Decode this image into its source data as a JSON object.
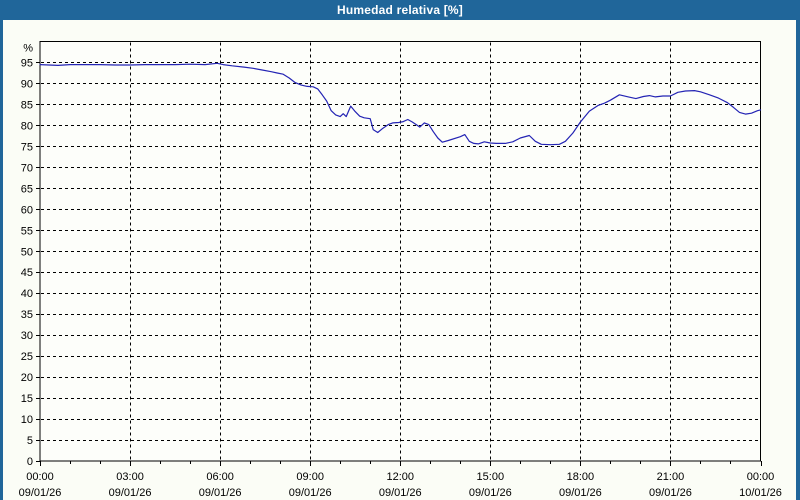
{
  "title": "Humedad relativa [%]",
  "colors": {
    "frame": "#20669a",
    "background": "#fbfdf6",
    "plot_background": "#fdfefa",
    "grid": "#000000",
    "axis": "#000000",
    "line": "#2424b4",
    "title_text": "#ffffff",
    "label_text": "#000000"
  },
  "chart_data": {
    "type": "line",
    "title": "Humedad relativa [%]",
    "ylabel": "%",
    "ylim": [
      0,
      100
    ],
    "yticks": [
      0,
      5,
      10,
      15,
      20,
      25,
      30,
      35,
      40,
      45,
      50,
      55,
      60,
      65,
      70,
      75,
      80,
      85,
      90,
      95
    ],
    "xlim_hours": [
      0,
      24
    ],
    "xticks": [
      {
        "hour": 0,
        "time": "00:00",
        "date": "09/01/26"
      },
      {
        "hour": 3,
        "time": "03:00",
        "date": "09/01/26"
      },
      {
        "hour": 6,
        "time": "06:00",
        "date": "09/01/26"
      },
      {
        "hour": 9,
        "time": "09:00",
        "date": "09/01/26"
      },
      {
        "hour": 12,
        "time": "12:00",
        "date": "09/01/26"
      },
      {
        "hour": 15,
        "time": "15:00",
        "date": "09/01/26"
      },
      {
        "hour": 18,
        "time": "18:00",
        "date": "09/01/26"
      },
      {
        "hour": 21,
        "time": "21:00",
        "date": "09/01/26"
      },
      {
        "hour": 24,
        "time": "00:00",
        "date": "10/01/26"
      }
    ],
    "minor_xtick_hours": 1,
    "grid": true,
    "legend": "none",
    "series": [
      {
        "name": "Humedad relativa",
        "color": "#2424b4",
        "points": [
          [
            0,
            94.5
          ],
          [
            0.3,
            94.4
          ],
          [
            0.6,
            94.3
          ],
          [
            1,
            94.5
          ],
          [
            1.5,
            94.5
          ],
          [
            2,
            94.5
          ],
          [
            2.5,
            94.4
          ],
          [
            3,
            94.4
          ],
          [
            3.5,
            94.5
          ],
          [
            4,
            94.5
          ],
          [
            4.5,
            94.5
          ],
          [
            5,
            94.6
          ],
          [
            5.5,
            94.5
          ],
          [
            5.9,
            94.8
          ],
          [
            6.1,
            94.5
          ],
          [
            6.4,
            94.2
          ],
          [
            6.8,
            93.9
          ],
          [
            7.1,
            93.6
          ],
          [
            7.4,
            93.2
          ],
          [
            7.7,
            92.8
          ],
          [
            7.9,
            92.5
          ],
          [
            8.1,
            92.2
          ],
          [
            8.3,
            91.3
          ],
          [
            8.5,
            90.2
          ],
          [
            8.7,
            89.6
          ],
          [
            8.9,
            89.3
          ],
          [
            9.1,
            89.2
          ],
          [
            9.25,
            88.7
          ],
          [
            9.4,
            87.3
          ],
          [
            9.55,
            85.8
          ],
          [
            9.7,
            83.5
          ],
          [
            9.85,
            82.5
          ],
          [
            10,
            82.1
          ],
          [
            10.1,
            82.8
          ],
          [
            10.2,
            82.1
          ],
          [
            10.35,
            84.6
          ],
          [
            10.5,
            83.3
          ],
          [
            10.65,
            82.2
          ],
          [
            10.8,
            81.8
          ],
          [
            11,
            81.6
          ],
          [
            11.1,
            79
          ],
          [
            11.25,
            78.3
          ],
          [
            11.4,
            79.2
          ],
          [
            11.6,
            80.2
          ],
          [
            11.75,
            80.6
          ],
          [
            11.95,
            80.7
          ],
          [
            12.1,
            80.9
          ],
          [
            12.25,
            81.4
          ],
          [
            12.4,
            80.8
          ],
          [
            12.55,
            80.1
          ],
          [
            12.65,
            79.6
          ],
          [
            12.8,
            80.6
          ],
          [
            12.95,
            80.2
          ],
          [
            13.1,
            78.5
          ],
          [
            13.25,
            77
          ],
          [
            13.4,
            76
          ],
          [
            13.6,
            76.4
          ],
          [
            14,
            77.3
          ],
          [
            14.15,
            77.8
          ],
          [
            14.3,
            76.2
          ],
          [
            14.45,
            75.7
          ],
          [
            14.6,
            75.6
          ],
          [
            14.8,
            76.1
          ],
          [
            15,
            75.8
          ],
          [
            15.2,
            75.7
          ],
          [
            15.5,
            75.7
          ],
          [
            15.75,
            76.1
          ],
          [
            16,
            77
          ],
          [
            16.3,
            77.6
          ],
          [
            16.5,
            76.2
          ],
          [
            16.7,
            75.5
          ],
          [
            17,
            75.4
          ],
          [
            17.3,
            75.5
          ],
          [
            17.5,
            76.2
          ],
          [
            17.75,
            78.2
          ],
          [
            18,
            80.8
          ],
          [
            18.3,
            83.4
          ],
          [
            18.6,
            84.8
          ],
          [
            18.8,
            85.3
          ],
          [
            19,
            86
          ],
          [
            19.3,
            87.3
          ],
          [
            19.6,
            86.8
          ],
          [
            19.85,
            86.4
          ],
          [
            20.1,
            86.9
          ],
          [
            20.3,
            87.1
          ],
          [
            20.5,
            86.8
          ],
          [
            20.75,
            87
          ],
          [
            21,
            87
          ],
          [
            21.25,
            87.9
          ],
          [
            21.5,
            88.2
          ],
          [
            21.8,
            88.3
          ],
          [
            22,
            88
          ],
          [
            22.3,
            87.3
          ],
          [
            22.6,
            86.5
          ],
          [
            22.9,
            85.4
          ],
          [
            23.1,
            84.3
          ],
          [
            23.3,
            83.1
          ],
          [
            23.5,
            82.7
          ],
          [
            23.7,
            82.9
          ],
          [
            23.9,
            83.5
          ],
          [
            24,
            83.7
          ]
        ]
      }
    ]
  }
}
